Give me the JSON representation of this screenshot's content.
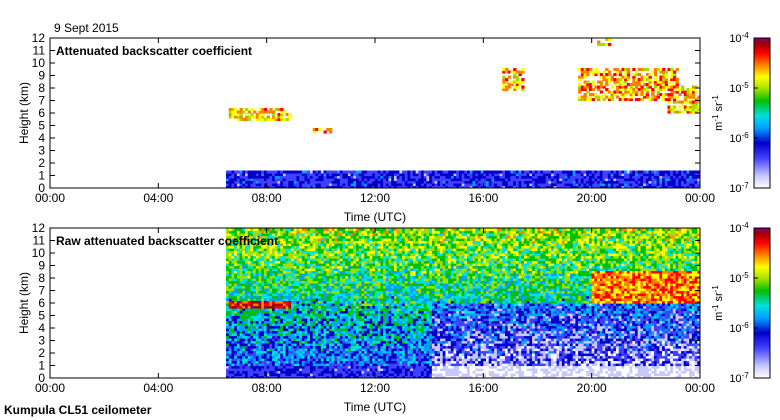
{
  "date_label": "9 Sept 2015",
  "footer_label": "Kumpula CL51 ceilometer",
  "colors": {
    "colormap": [
      "#ffffff",
      "#c8c8ff",
      "#4040ff",
      "#0000c8",
      "#00a0ff",
      "#00e0e0",
      "#00c000",
      "#a0e000",
      "#ffff00",
      "#ff8000",
      "#ff0000",
      "#a00000",
      "#800080"
    ],
    "frame": "#000000"
  },
  "chart_data": [
    {
      "type": "heatmap",
      "title": "Attenuated backscatter coefficient",
      "xlabel": "Time (UTC)",
      "ylabel": "Height (km)",
      "xticks": [
        "00:00",
        "04:00",
        "08:00",
        "12:00",
        "16:00",
        "20:00",
        "00:00"
      ],
      "yticks": [
        "0",
        "1",
        "2",
        "3",
        "4",
        "5",
        "6",
        "7",
        "8",
        "9",
        "10",
        "11",
        "12"
      ],
      "xlim_hours": [
        0,
        24
      ],
      "ylim_km": [
        0,
        12
      ],
      "data_start_hour": 6.5,
      "colorbar": {
        "ticks": [
          "10-7",
          "10-6",
          "10-5",
          "10-4"
        ],
        "label": "m-1 sr-1",
        "scale": "log",
        "range": [
          1e-07,
          0.0001
        ]
      },
      "features": [
        {
          "name": "boundary layer",
          "t_start": 6.5,
          "t_end": 24,
          "z_bottom": 0,
          "z_top": 1.3,
          "level": 0.22
        },
        {
          "name": "aerosol layer",
          "t_start": 6.6,
          "t_end": 8.9,
          "z_bottom": 5.4,
          "z_top": 6.4,
          "level": 0.68
        },
        {
          "name": "aerosol patch",
          "t_start": 9.6,
          "t_end": 10.4,
          "z_bottom": 4.3,
          "z_top": 4.7,
          "level": 0.7
        },
        {
          "name": "cloud",
          "t_start": 16.7,
          "t_end": 17.5,
          "z_bottom": 7.8,
          "z_top": 9.5,
          "level": 0.7
        },
        {
          "name": "cirrus",
          "t_start": 19.5,
          "t_end": 23.2,
          "z_bottom": 7.0,
          "z_top": 9.6,
          "level": 0.72
        },
        {
          "name": "cirrus",
          "t_start": 22.8,
          "t_end": 24,
          "z_bottom": 6.0,
          "z_top": 8.2,
          "level": 0.7
        },
        {
          "name": "high cloud",
          "t_start": 20.2,
          "t_end": 20.7,
          "z_bottom": 11.4,
          "z_top": 12,
          "level": 0.7
        }
      ]
    },
    {
      "type": "heatmap",
      "title": "Raw attenuated backscatter coefficient",
      "xlabel": "Time (UTC)",
      "ylabel": "Height (km)",
      "xticks": [
        "00:00",
        "04:00",
        "08:00",
        "12:00",
        "16:00",
        "20:00",
        "00:00"
      ],
      "yticks": [
        "0",
        "1",
        "2",
        "3",
        "4",
        "5",
        "6",
        "7",
        "8",
        "9",
        "10",
        "11",
        "12"
      ],
      "xlim_hours": [
        0,
        24
      ],
      "ylim_km": [
        0,
        12
      ],
      "data_start_hour": 6.5,
      "colorbar": {
        "ticks": [
          "10-7",
          "10-6",
          "10-5",
          "10-4"
        ],
        "label": "m-1 sr-1",
        "scale": "log",
        "range": [
          1e-07,
          0.0001
        ]
      },
      "features": [
        {
          "name": "noisy sky",
          "t_start": 6.5,
          "t_end": 24,
          "z_bottom": 0,
          "z_top": 12,
          "level": 0.55
        },
        {
          "name": "aerosol layer",
          "t_start": 6.6,
          "t_end": 8.9,
          "z_bottom": 5.6,
          "z_top": 6.2,
          "level": 0.85
        },
        {
          "name": "cirrus",
          "t_start": 20.0,
          "t_end": 24,
          "z_bottom": 6.0,
          "z_top": 8.5,
          "level": 0.75
        }
      ]
    }
  ]
}
